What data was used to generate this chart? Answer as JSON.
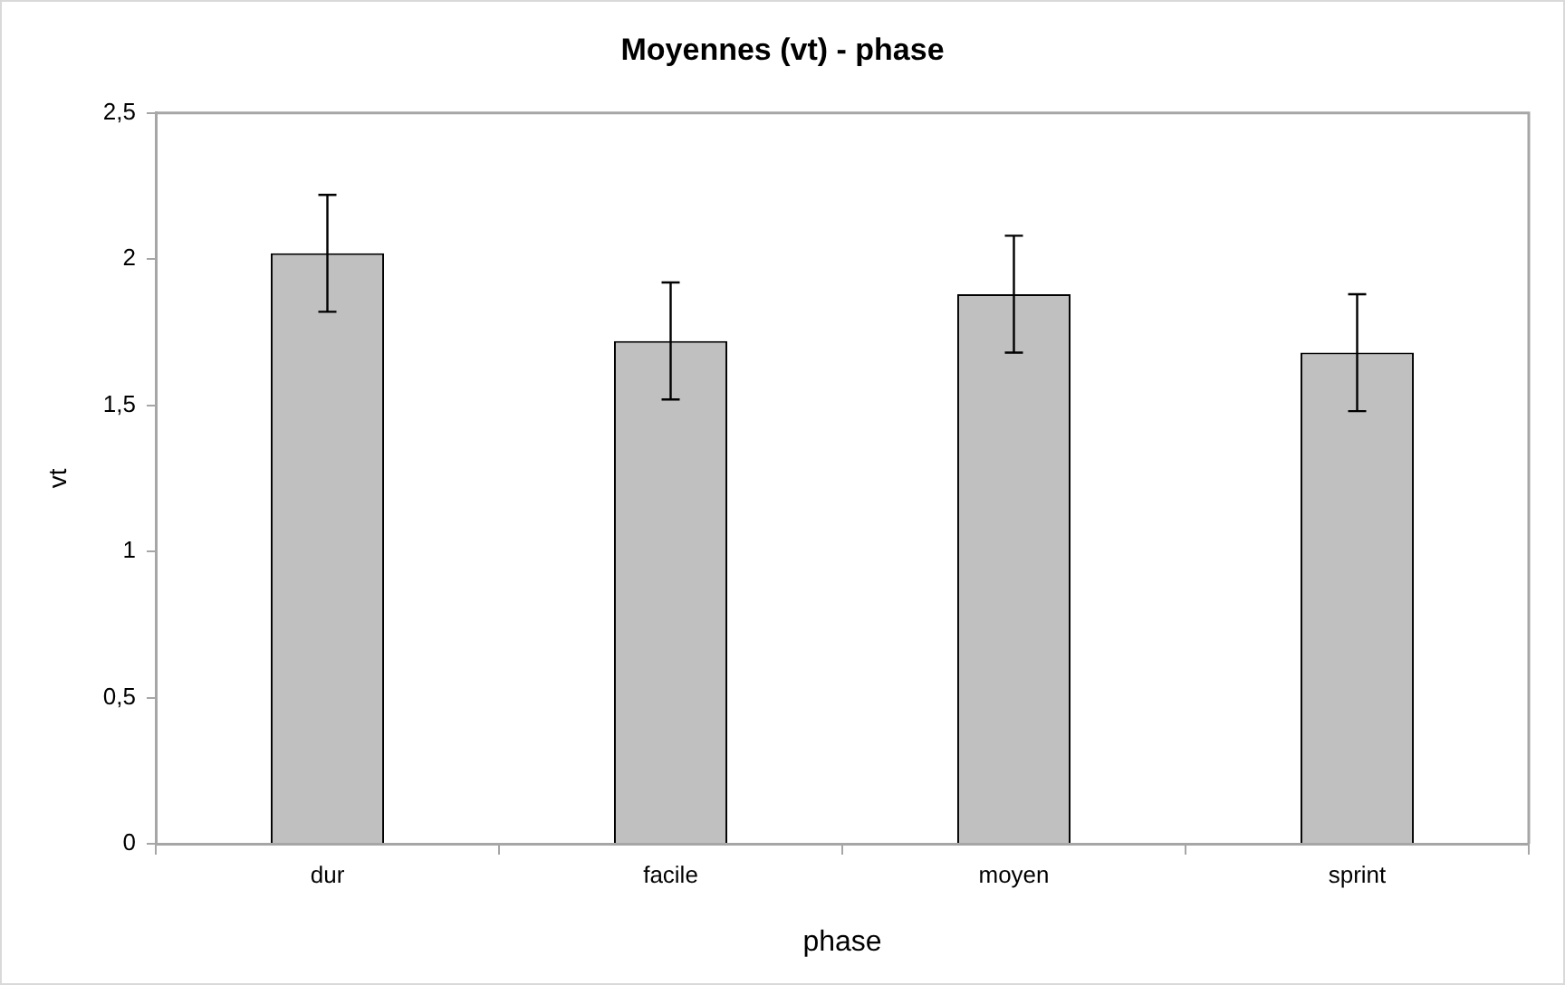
{
  "chart_data": {
    "type": "bar",
    "title": "Moyennes (vt) - phase",
    "xlabel": "phase",
    "ylabel": "vt",
    "categories": [
      "dur",
      "facile",
      "moyen",
      "sprint"
    ],
    "values": [
      2.02,
      1.72,
      1.88,
      1.68
    ],
    "errors": [
      0.2,
      0.2,
      0.2,
      0.2
    ],
    "color": "#c0c0c0",
    "ylim": [
      0,
      2.5
    ],
    "yticks": [
      0,
      {
        "value": 0.5,
        "label": "0,5"
      },
      1,
      {
        "value": 1.5,
        "label": "1,5"
      },
      2,
      {
        "value": 2.5,
        "label": "2,5"
      }
    ]
  }
}
